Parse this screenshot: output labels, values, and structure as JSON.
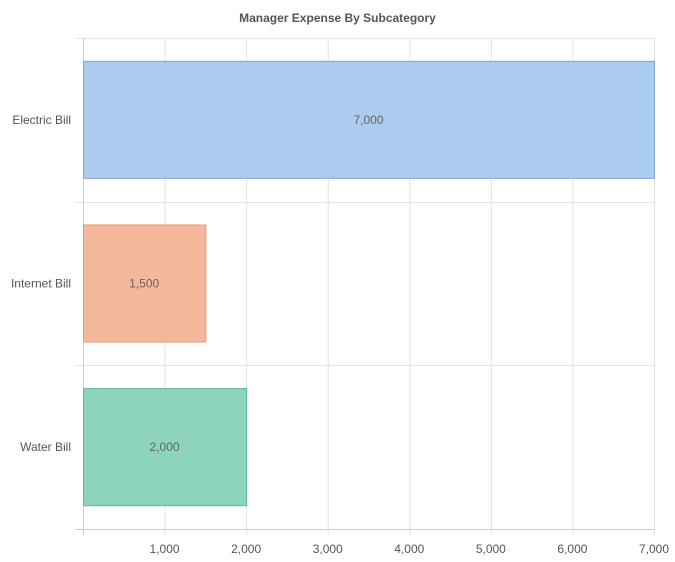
{
  "chart_data": {
    "type": "bar",
    "orientation": "horizontal",
    "title": "Manager Expense By Subcategory",
    "categories": [
      "Electric Bill",
      "Internet Bill",
      "Water Bill"
    ],
    "values": [
      7000,
      1500,
      2000
    ],
    "data_labels": [
      "7,000",
      "1,500",
      "2,000"
    ],
    "colors": {
      "fill": [
        "#acccee",
        "#f4b99c",
        "#8cd4ba"
      ],
      "stroke": [
        "#7ea9d4",
        "#ef9566",
        "#5cb896"
      ]
    },
    "xlim": [
      0,
      7000
    ],
    "xticks": [
      1000,
      2000,
      3000,
      4000,
      5000,
      6000,
      7000
    ],
    "xtick_labels": [
      "1,000",
      "2,000",
      "3,000",
      "4,000",
      "5,000",
      "6,000",
      "7,000"
    ],
    "grid": true,
    "legend": "none"
  }
}
